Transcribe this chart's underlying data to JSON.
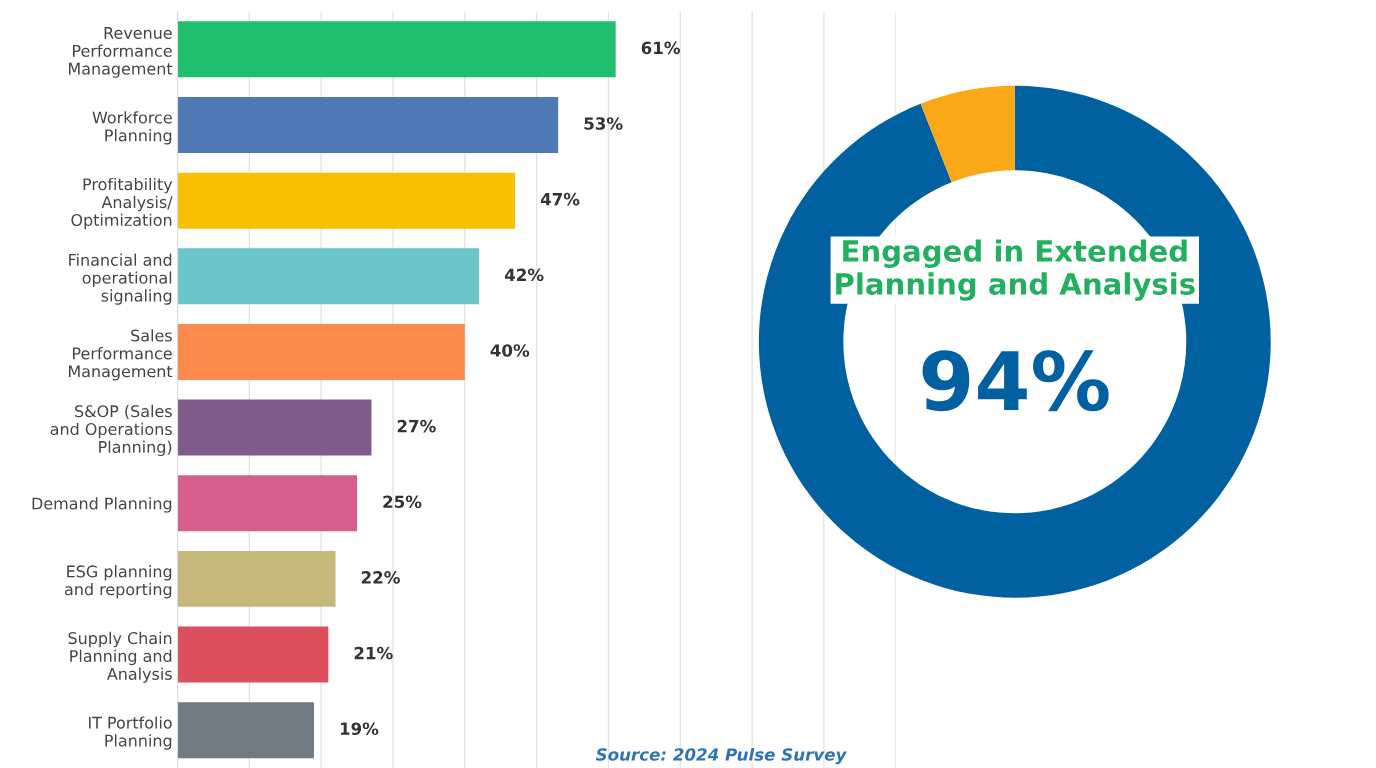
{
  "chart_data": [
    {
      "type": "bar",
      "orientation": "horizontal",
      "categories": [
        "Revenue\nPerformance\nManagement",
        "Workforce\nPlanning",
        "Profitability\nAnalysis/\nOptimization",
        "Financial and\noperational\nsignaling",
        "Sales\nPerformance\nManagement",
        "S&OP (Sales\nand Operations\nPlanning)",
        "Demand Planning",
        "ESG planning\nand reporting",
        "Supply Chain\nPlanning and\nAnalysis",
        "IT Portfolio\nPlanning"
      ],
      "values": [
        61,
        53,
        47,
        42,
        40,
        27,
        25,
        22,
        21,
        19
      ],
      "colors": [
        "#1fbf6f",
        "#4e79b5",
        "#f7c000",
        "#6cc6c9",
        "#fb8a4d",
        "#7d5c8c",
        "#d55f8c",
        "#c6b77a",
        "#dc4f5c",
        "#6f7a82"
      ],
      "value_labels": [
        "61%",
        "53%",
        "47%",
        "42%",
        "40%",
        "27%",
        "25%",
        "22%",
        "21%",
        "19%"
      ],
      "xlim": [
        0,
        100
      ],
      "xticks": [
        {
          "value": 0,
          "label": null
        },
        {
          "value": 10,
          "label": null
        },
        {
          "value": 20,
          "label": null
        },
        {
          "value": 30,
          "label": null
        },
        {
          "value": 40,
          "label": null
        },
        {
          "value": 50,
          "label": null
        },
        {
          "value": 60,
          "label": null
        },
        {
          "value": 70,
          "label": null
        },
        {
          "value": 80,
          "label": null
        },
        {
          "value": 90,
          "label": null
        },
        {
          "value": 100,
          "label": null
        }
      ],
      "grid": "x",
      "tick_labels": "y",
      "annotations": [
        "Source: 2024 Pulse Survey"
      ]
    },
    {
      "type": "donut",
      "title": "Engaged in Extended\nPlanning and Analysis",
      "categories": [
        null,
        null
      ],
      "values": [
        94,
        6
      ],
      "colors": [
        "#0060a0",
        "#f9a818"
      ],
      "value_labels": [
        "94%",
        null
      ]
    }
  ]
}
